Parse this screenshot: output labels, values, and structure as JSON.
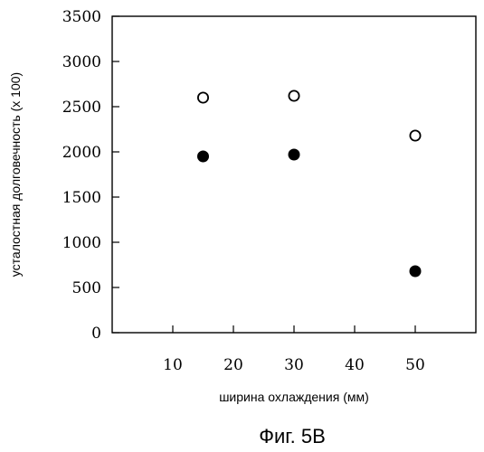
{
  "chart_data": {
    "type": "scatter",
    "xlabel": "ширина охлаждения (мм)",
    "ylabel": "усталостная долговечность (x 100)",
    "caption": "Фиг. 5B",
    "xlim": [
      0,
      60
    ],
    "ylim": [
      0,
      3500
    ],
    "xticks": [
      10,
      20,
      30,
      40,
      50
    ],
    "yticks": [
      0,
      500,
      1000,
      1500,
      2000,
      2500,
      3000,
      3500
    ],
    "grid": false,
    "series": [
      {
        "marker": "open-circle",
        "color": "#000000",
        "points": [
          {
            "x": 15,
            "y": 2600
          },
          {
            "x": 30,
            "y": 2620
          },
          {
            "x": 50,
            "y": 2180
          }
        ]
      },
      {
        "marker": "filled-circle",
        "color": "#000000",
        "points": [
          {
            "x": 15,
            "y": 1950
          },
          {
            "x": 30,
            "y": 1970
          },
          {
            "x": 50,
            "y": 680
          }
        ]
      }
    ]
  }
}
